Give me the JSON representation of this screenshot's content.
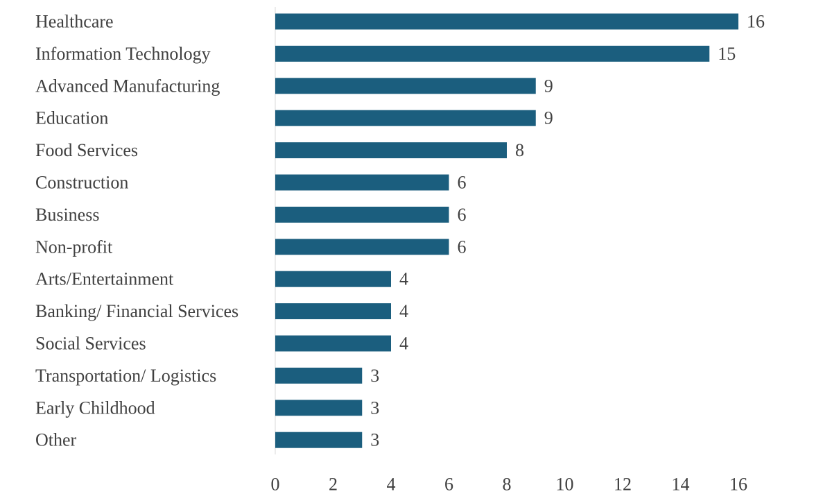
{
  "chart_data": {
    "type": "bar",
    "orientation": "horizontal",
    "categories": [
      "Healthcare",
      "Information Technology",
      "Advanced Manufacturing",
      "Education",
      "Food Services",
      "Construction",
      "Business",
      "Non-profit",
      "Arts/Entertainment",
      "Banking/ Financial Services",
      "Social Services",
      "Transportation/ Logistics",
      "Early Childhood",
      "Other"
    ],
    "values": [
      16,
      15,
      9,
      9,
      8,
      6,
      6,
      6,
      4,
      4,
      4,
      3,
      3,
      3
    ],
    "x_ticks": [
      "0",
      "2",
      "4",
      "6",
      "8",
      "10",
      "12",
      "14",
      "16"
    ],
    "xlim": [
      0,
      16
    ],
    "title": "",
    "xlabel": "",
    "ylabel": "",
    "grid": false,
    "legend": "none",
    "data_labels": true,
    "bar_color": "#1b5e7e",
    "text_color": "#404040",
    "axis_color": "#d9d9d9"
  }
}
